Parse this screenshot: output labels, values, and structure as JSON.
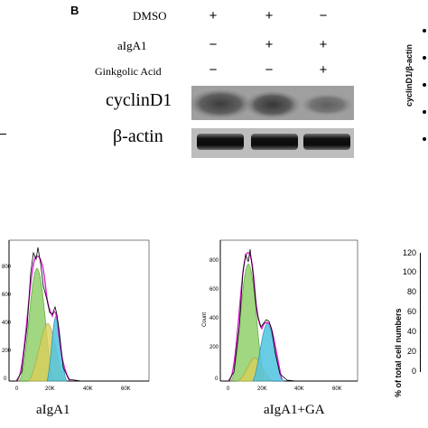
{
  "panel_letter": "B",
  "treatments": [
    {
      "label": "DMSO",
      "signs": [
        "+",
        "+",
        "−"
      ]
    },
    {
      "label": "aIgA1",
      "signs": [
        "−",
        "+",
        "+"
      ]
    },
    {
      "label": "Ginkgolic Acid",
      "signs": [
        "−",
        "−",
        "+"
      ]
    }
  ],
  "blots": {
    "top": "cyclinD1",
    "bottom": "β-actin"
  },
  "right_top_axis_label": "cyclinD1/β-actin",
  "right_bottom_axis_label": "% of total cell numbers",
  "right_bottom_ticks": [
    "120",
    "100",
    "80",
    "60",
    "40",
    "20",
    "0"
  ],
  "histograms": [
    {
      "caption": "aIgA1",
      "y_label": "",
      "y_ticks": [
        "800",
        "600",
        "400",
        "200",
        "0"
      ],
      "x_ticks": [
        "0",
        "20K",
        "40K",
        "60K"
      ]
    },
    {
      "caption": "aIgA1+GA",
      "y_label": "Count",
      "y_ticks": [
        "800",
        "600",
        "400",
        "200",
        "0"
      ],
      "x_ticks": [
        "0",
        "20K",
        "40K",
        "60K"
      ]
    }
  ],
  "colors": {
    "green": "#8fd06a",
    "yellow": "#d9cf5a",
    "cyan": "#4fc3e0",
    "magenta": "#d81fd0"
  }
}
